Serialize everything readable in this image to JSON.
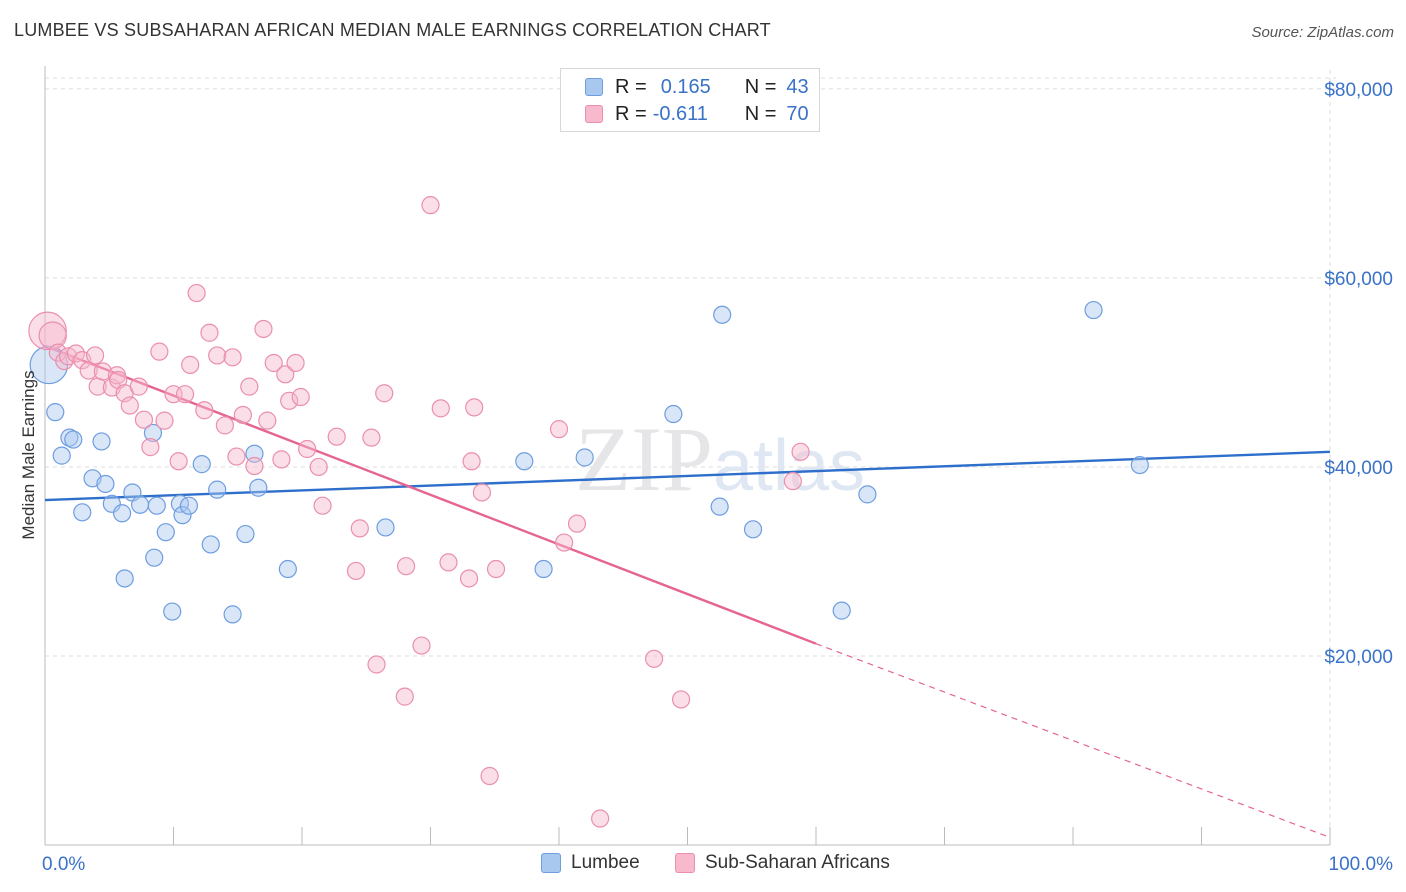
{
  "title": "LUMBEE VS SUBSAHARAN AFRICAN MEDIAN MALE EARNINGS CORRELATION CHART",
  "source": "Source: ZipAtlas.com",
  "watermark": "ZIPatlas",
  "legend_top": [
    {
      "r_label": "R =",
      "r_value": "0.165",
      "n_label": "N =",
      "n_value": "43"
    },
    {
      "r_label": "R =",
      "r_value": "-0.611",
      "n_label": "N =",
      "n_value": "70"
    }
  ],
  "legend_bottom": [
    "Lumbee",
    "Sub-Saharan Africans"
  ],
  "colors": {
    "lumbee_fill": "#a9c8f0",
    "lumbee_stroke": "#6e9de0",
    "lumbee_line": "#2f6fcc",
    "ssa_fill": "#f7b9cb",
    "ssa_stroke": "#ea8fae",
    "ssa_line": "#e56590",
    "tick_label": "#3a72c8",
    "grid": "#dddddd"
  },
  "chart_data": {
    "type": "scatter",
    "title": "LUMBEE VS SUBSAHARAN AFRICAN MEDIAN MALE EARNINGS CORRELATION CHART",
    "xlabel": "",
    "ylabel": "Median Male Earnings",
    "xlim": [
      0,
      100
    ],
    "ylim": [
      0,
      82000
    ],
    "x_tick_labels": [
      "0.0%",
      "100.0%"
    ],
    "y_ticks": [
      20000,
      40000,
      60000,
      80000
    ],
    "y_tick_labels": [
      "$20,000",
      "$40,000",
      "$60,000",
      "$80,000"
    ],
    "grid": true,
    "legend_position": "top-center",
    "series": [
      {
        "name": "Lumbee",
        "r": 0.165,
        "n": 43,
        "trend": {
          "x": [
            0,
            100
          ],
          "y": [
            36500,
            41600
          ]
        },
        "points": [
          [
            0.3,
            50800,
            2.2
          ],
          [
            0.8,
            45800,
            1
          ],
          [
            1.3,
            41200,
            1
          ],
          [
            1.9,
            43100,
            1
          ],
          [
            2.2,
            42900,
            1
          ],
          [
            2.9,
            35200,
            1
          ],
          [
            3.7,
            38800,
            1
          ],
          [
            4.4,
            42700,
            1
          ],
          [
            4.7,
            38200,
            1
          ],
          [
            5.2,
            36100,
            1
          ],
          [
            6.0,
            35100,
            1
          ],
          [
            6.2,
            28200,
            1
          ],
          [
            6.8,
            37300,
            1
          ],
          [
            7.4,
            36000,
            1
          ],
          [
            8.4,
            43600,
            1
          ],
          [
            8.5,
            30400,
            1
          ],
          [
            8.7,
            35900,
            1
          ],
          [
            9.4,
            33100,
            1
          ],
          [
            9.9,
            24700,
            1
          ],
          [
            10.5,
            36100,
            1
          ],
          [
            10.7,
            34900,
            1
          ],
          [
            11.2,
            35900,
            1
          ],
          [
            12.2,
            40300,
            1
          ],
          [
            12.9,
            31800,
            1
          ],
          [
            13.4,
            37600,
            1
          ],
          [
            14.6,
            24400,
            1
          ],
          [
            15.6,
            32900,
            1
          ],
          [
            16.3,
            41400,
            1
          ],
          [
            16.6,
            37800,
            1
          ],
          [
            18.9,
            29200,
            1
          ],
          [
            26.5,
            33600,
            1
          ],
          [
            37.3,
            40600,
            1
          ],
          [
            38.8,
            29200,
            1
          ],
          [
            42.0,
            41000,
            1
          ],
          [
            48.9,
            45600,
            1
          ],
          [
            52.5,
            35800,
            1
          ],
          [
            52.7,
            56100,
            1
          ],
          [
            55.1,
            33400,
            1
          ],
          [
            62.0,
            24800,
            1
          ],
          [
            64.0,
            37100,
            1
          ],
          [
            81.6,
            56600,
            1
          ],
          [
            85.2,
            40200,
            1
          ]
        ]
      },
      {
        "name": "Sub-Saharan Africans",
        "r": -0.611,
        "n": 70,
        "trend": {
          "x": [
            0,
            60
          ],
          "y": [
            52800,
            21300
          ]
        },
        "trend_extension": {
          "x": [
            60,
            100
          ],
          "y": [
            21300,
            800
          ]
        },
        "points": [
          [
            0.2,
            54400,
            2.2
          ],
          [
            0.6,
            53900,
            1.6
          ],
          [
            1.0,
            52100,
            1
          ],
          [
            1.5,
            51200,
            1
          ],
          [
            1.8,
            51700,
            1
          ],
          [
            2.4,
            52000,
            1
          ],
          [
            2.9,
            51300,
            1
          ],
          [
            3.4,
            50200,
            1
          ],
          [
            3.9,
            51800,
            1
          ],
          [
            4.1,
            48500,
            1
          ],
          [
            4.5,
            50100,
            1
          ],
          [
            5.2,
            48400,
            1
          ],
          [
            5.6,
            49700,
            1
          ],
          [
            5.7,
            49200,
            1
          ],
          [
            6.2,
            47800,
            1
          ],
          [
            6.6,
            46500,
            1
          ],
          [
            7.3,
            48500,
            1
          ],
          [
            7.7,
            45000,
            1
          ],
          [
            8.2,
            42100,
            1
          ],
          [
            8.9,
            52200,
            1
          ],
          [
            9.3,
            44900,
            1
          ],
          [
            10.0,
            47700,
            1
          ],
          [
            10.4,
            40600,
            1
          ],
          [
            10.9,
            47700,
            1
          ],
          [
            11.3,
            50800,
            1
          ],
          [
            11.8,
            58400,
            1
          ],
          [
            12.4,
            46000,
            1
          ],
          [
            12.8,
            54200,
            1
          ],
          [
            13.4,
            51800,
            1
          ],
          [
            14.0,
            44400,
            1
          ],
          [
            14.6,
            51600,
            1
          ],
          [
            14.9,
            41100,
            1
          ],
          [
            15.4,
            45500,
            1
          ],
          [
            15.9,
            48500,
            1
          ],
          [
            16.3,
            40100,
            1
          ],
          [
            17.0,
            54600,
            1
          ],
          [
            17.3,
            44900,
            1
          ],
          [
            17.8,
            51000,
            1
          ],
          [
            18.4,
            40800,
            1
          ],
          [
            18.7,
            49800,
            1
          ],
          [
            19.0,
            47000,
            1
          ],
          [
            19.5,
            51000,
            1
          ],
          [
            19.9,
            47400,
            1
          ],
          [
            20.4,
            41900,
            1
          ],
          [
            21.3,
            40000,
            1
          ],
          [
            21.6,
            35900,
            1
          ],
          [
            22.7,
            43200,
            1
          ],
          [
            24.2,
            29000,
            1
          ],
          [
            24.5,
            33500,
            1
          ],
          [
            25.4,
            43100,
            1
          ],
          [
            25.8,
            19100,
            1
          ],
          [
            26.4,
            47800,
            1
          ],
          [
            28.0,
            15700,
            1
          ],
          [
            28.1,
            29500,
            1
          ],
          [
            29.3,
            21100,
            1
          ],
          [
            30.0,
            67700,
            1
          ],
          [
            30.8,
            46200,
            1
          ],
          [
            31.4,
            29900,
            1
          ],
          [
            33.0,
            28200,
            1
          ],
          [
            33.2,
            40600,
            1
          ],
          [
            33.4,
            46300,
            1
          ],
          [
            34.0,
            37300,
            1
          ],
          [
            34.6,
            7300,
            1
          ],
          [
            35.1,
            29200,
            1
          ],
          [
            40.0,
            44000,
            1
          ],
          [
            40.4,
            32000,
            1
          ],
          [
            41.4,
            34000,
            1
          ],
          [
            43.2,
            2800,
            1
          ],
          [
            47.4,
            19700,
            1
          ],
          [
            49.5,
            15400,
            1
          ],
          [
            58.2,
            38500,
            1
          ],
          [
            58.8,
            41600,
            1
          ]
        ]
      }
    ]
  }
}
